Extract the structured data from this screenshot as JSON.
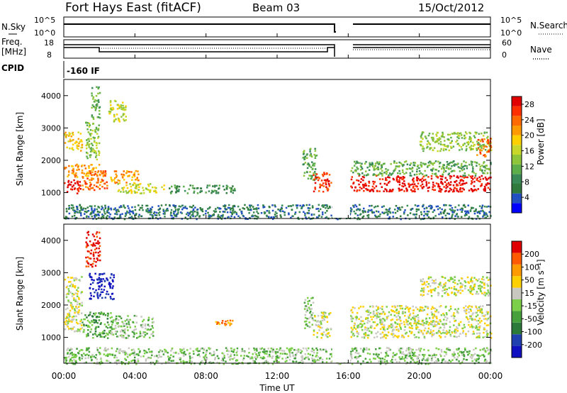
{
  "header": {
    "station": "Fort Hays East (fitACF)",
    "beam": "Beam 03",
    "date": "15/Oct/2012"
  },
  "status_panels": {
    "nsky_label": "N.Sky",
    "nsky_ticks": [
      "10^5",
      "10^0"
    ],
    "nsearch_label": "N.Search",
    "nsearch_ticks": [
      "10^5",
      "10^0"
    ],
    "freq_label_line1": "Freq.",
    "freq_label_line2": "[MHz]",
    "freq_ticks": [
      "18",
      "8"
    ],
    "nave_label": "Nave",
    "nave_ticks": [
      "60",
      "0"
    ],
    "cpid_label": "CPID",
    "cpid_value": "-160 IF"
  },
  "chart_data": [
    {
      "type": "heatmap",
      "name": "power-panel",
      "ylabel": "Slant Range [km]",
      "xlabel": "Time UT",
      "xlim": [
        0,
        24
      ],
      "ylim": [
        200,
        4500
      ],
      "y_ticks": [
        "1000",
        "2000",
        "3000",
        "4000"
      ],
      "x_ticks": [
        "00:00",
        "04:00",
        "08:00",
        "12:00",
        "16:00",
        "20:00",
        "00:00"
      ],
      "data_gap_hours": [
        15.1,
        16.1
      ],
      "colorbar": {
        "label": "Power [dB]",
        "ticks": [
          "4",
          "8",
          "12",
          "16",
          "20",
          "24",
          "28"
        ],
        "range": [
          0,
          30
        ],
        "colors": [
          "#0000ff",
          "#2250c0",
          "#2f7a3c",
          "#3a8a58",
          "#5dad4a",
          "#8ec53a",
          "#c8d82a",
          "#ffd000",
          "#ff9a00",
          "#ff6a00",
          "#ff3000",
          "#e00000"
        ]
      },
      "echo_regions": [
        {
          "t0": 0.0,
          "t1": 0.9,
          "r0": 1000,
          "r1": 1450,
          "level": 11
        },
        {
          "t0": 0.0,
          "t1": 2.0,
          "r0": 1500,
          "r1": 1900,
          "level": 8
        },
        {
          "t0": 0.0,
          "t1": 1.0,
          "r0": 2300,
          "r1": 2900,
          "level": 7
        },
        {
          "t0": 1.0,
          "t1": 2.4,
          "r0": 1100,
          "r1": 1700,
          "level": 9
        },
        {
          "t0": 1.2,
          "t1": 2.0,
          "r0": 2000,
          "r1": 3200,
          "level": 5
        },
        {
          "t0": 1.5,
          "t1": 2.0,
          "r0": 3300,
          "r1": 4300,
          "level": 4
        },
        {
          "t0": 2.5,
          "t1": 3.5,
          "r0": 3200,
          "r1": 3900,
          "level": 6
        },
        {
          "t0": 2.6,
          "t1": 4.2,
          "r0": 1300,
          "r1": 1700,
          "level": 8
        },
        {
          "t0": 3.0,
          "t1": 5.6,
          "r0": 1000,
          "r1": 1300,
          "level": 6
        },
        {
          "t0": 5.8,
          "t1": 9.6,
          "r0": 1000,
          "r1": 1250,
          "level": 3
        },
        {
          "t0": 13.4,
          "t1": 14.2,
          "r0": 1400,
          "r1": 2400,
          "level": 4
        },
        {
          "t0": 14.0,
          "t1": 15.0,
          "r0": 1050,
          "r1": 1650,
          "level": 10
        },
        {
          "t0": 16.1,
          "t1": 24.0,
          "r0": 1050,
          "r1": 1550,
          "level": 11
        },
        {
          "t0": 16.1,
          "t1": 24.0,
          "r0": 1550,
          "r1": 2000,
          "level": 4
        },
        {
          "t0": 20.0,
          "t1": 24.0,
          "r0": 2300,
          "r1": 2900,
          "level": 5
        },
        {
          "t0": 23.2,
          "t1": 24.0,
          "r0": 2100,
          "r1": 2700,
          "level": 9
        },
        {
          "t0": 0.0,
          "t1": 24.0,
          "r0": 200,
          "r1": 650,
          "level": 2
        }
      ]
    },
    {
      "type": "heatmap",
      "name": "velocity-panel",
      "ylabel": "Slant Range [km]",
      "xlabel": "Time UT",
      "xlim": [
        0,
        24
      ],
      "ylim": [
        200,
        4500
      ],
      "y_ticks": [
        "1000",
        "2000",
        "3000",
        "4000"
      ],
      "x_ticks": [
        "00:00",
        "04:00",
        "08:00",
        "12:00",
        "16:00",
        "20:00",
        "00:00"
      ],
      "data_gap_hours": [
        15.1,
        16.1
      ],
      "colorbar": {
        "label": "Velocity [m s⁻¹]",
        "ticks": [
          "200",
          "100",
          "50",
          "15",
          "-15",
          "-50",
          "-100",
          "-200"
        ],
        "colors": [
          "#1010c0",
          "#2040b0",
          "#2c7a3a",
          "#46a03c",
          "#7ccf48",
          "#c8c8c0",
          "#ffd000",
          "#ff9a00",
          "#ff5a00",
          "#e00000"
        ]
      },
      "echo_regions": [
        {
          "t0": 0.0,
          "t1": 1.0,
          "r0": 1200,
          "r1": 2900,
          "level": 5
        },
        {
          "t0": 1.0,
          "t1": 2.6,
          "r0": 1000,
          "r1": 1800,
          "level": 3
        },
        {
          "t0": 1.2,
          "t1": 2.0,
          "r0": 3200,
          "r1": 4300,
          "level": 9
        },
        {
          "t0": 1.4,
          "t1": 2.8,
          "r0": 2200,
          "r1": 3000,
          "level": 0
        },
        {
          "t0": 2.6,
          "t1": 5.0,
          "r0": 1000,
          "r1": 1700,
          "level": 4
        },
        {
          "t0": 8.5,
          "t1": 9.5,
          "r0": 1400,
          "r1": 1550,
          "level": 7
        },
        {
          "t0": 13.5,
          "t1": 14.0,
          "r0": 1200,
          "r1": 2300,
          "level": 4
        },
        {
          "t0": 14.0,
          "t1": 15.0,
          "r0": 1000,
          "r1": 1800,
          "level": 5
        },
        {
          "t0": 16.1,
          "t1": 24.0,
          "r0": 1000,
          "r1": 2000,
          "level": 5
        },
        {
          "t0": 20.0,
          "t1": 24.0,
          "r0": 2300,
          "r1": 2900,
          "level": 5
        },
        {
          "t0": 0.0,
          "t1": 24.0,
          "r0": 200,
          "r1": 700,
          "level": 4
        }
      ]
    }
  ]
}
